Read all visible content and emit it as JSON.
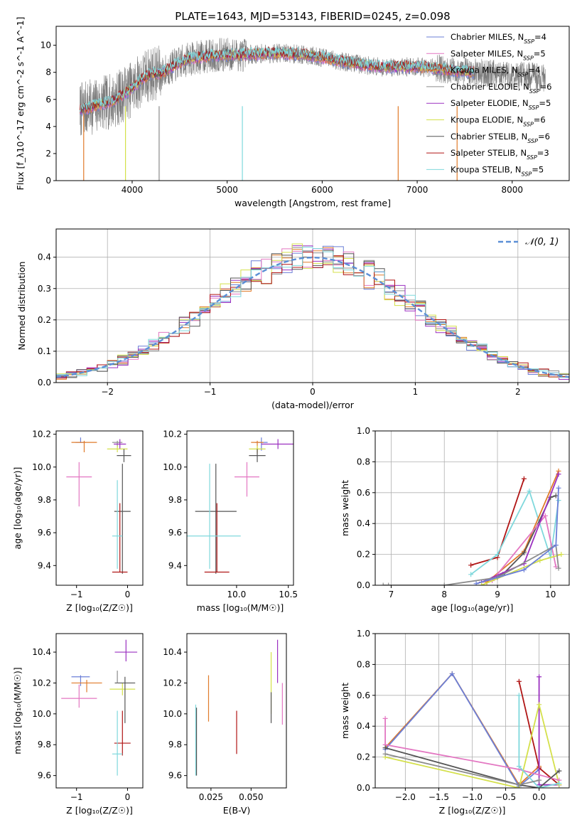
{
  "figure": {
    "title": "PLATE=1643, MJD=53143, FIBERID=0245, z=0.098"
  },
  "colors": {
    "Chabrier MILES": "#6b7fd7",
    "Salpeter MILES": "#e377c2",
    "Kroupa MILES": "#e07b2a",
    "Chabrier ELODIE": "#8c8c8c",
    "Salpeter ELODIE": "#9b30c0",
    "Kroupa ELODIE": "#d4e04a",
    "Chabrier STELIB": "#555555",
    "Salpeter STELIB": "#b01515",
    "Kroupa STELIB": "#7fd8dc",
    "gaussian": "#5b8fd6"
  },
  "chart_data": [
    {
      "id": "spectrum",
      "type": "line",
      "xlabel": "wavelength [Angstrom, rest frame]",
      "ylabel": "Flux [f_λ10^-17 erg cm^-2 s^-1 A^-1]",
      "xlim": [
        3200,
        8600
      ],
      "ylim": [
        0,
        11.4
      ],
      "xticks": [
        4000,
        5000,
        6000,
        7000,
        8000
      ],
      "yticks": [
        0,
        2,
        4,
        6,
        8,
        10
      ],
      "legend_position": "upper right",
      "legend": [
        {
          "label": "Chabrier MILES, N",
          "sub": "SSP",
          "suffix": "=4"
        },
        {
          "label": "Salpeter MILES, N",
          "sub": "SSP",
          "suffix": "=5"
        },
        {
          "label": "Kroupa MILES, N",
          "sub": "SSP",
          "suffix": "=4"
        },
        {
          "label": "Chabrier ELODIE, N",
          "sub": "SSP",
          "suffix": "=6"
        },
        {
          "label": "Salpeter ELODIE, N",
          "sub": "SSP",
          "suffix": "=5"
        },
        {
          "label": "Kroupa ELODIE, N",
          "sub": "SSP",
          "suffix": "=6"
        },
        {
          "label": "Chabrier STELIB, N",
          "sub": "SSP",
          "suffix": "=6"
        },
        {
          "label": "Salpeter STELIB, N",
          "sub": "SSP",
          "suffix": "=3"
        },
        {
          "label": "Kroupa STELIB, N",
          "sub": "SSP",
          "suffix": "=5"
        }
      ],
      "continuum": {
        "x": [
          3450,
          3600,
          3700,
          3800,
          3900,
          4000,
          4100,
          4200,
          4300,
          4400,
          4500,
          4600,
          4800,
          5000,
          5200,
          5400,
          5600,
          5800,
          6000,
          6200,
          6400,
          6600,
          6800,
          7000,
          7200,
          7400,
          7600,
          7800,
          8000,
          8200,
          8350
        ],
        "y": [
          5.2,
          5.5,
          5.7,
          5.9,
          6.3,
          6.8,
          7.5,
          7.9,
          7.9,
          8.3,
          8.7,
          9.0,
          9.2,
          9.3,
          9.3,
          9.4,
          9.4,
          9.3,
          9.1,
          8.8,
          8.6,
          8.4,
          8.4,
          8.4,
          8.3,
          8.1,
          8.0,
          7.9,
          7.8,
          7.7,
          7.6
        ]
      },
      "data_noise_amplitude_note": "observed data shown as noisy grey trace around the model continuum"
    },
    {
      "id": "residuals",
      "type": "bar",
      "xlabel": "(data-model)/error",
      "ylabel": "Normed distribution",
      "xlim": [
        -2.5,
        2.5
      ],
      "ylim": [
        0,
        0.49
      ],
      "xticks": [
        -2,
        -1,
        0,
        1,
        2
      ],
      "yticks": [
        0.0,
        0.1,
        0.2,
        0.3,
        0.4
      ],
      "grid": true,
      "legend_position": "upper right",
      "legend_label": "𝒩(0, 1)",
      "bin_width": 0.1
    },
    {
      "id": "age_vs_Z",
      "type": "scatter",
      "xlabel": "Z [log₁₀(Z/Z☉)]",
      "ylabel": "age  [log₁₀(age/yr)]",
      "xlim": [
        -1.4,
        0.3
      ],
      "ylim": [
        9.28,
        10.22
      ],
      "xticks": [
        -1,
        0
      ],
      "yticks": [
        9.4,
        9.6,
        9.8,
        10.0,
        10.2
      ],
      "points": [
        {
          "model": "Chabrier MILES",
          "x": -0.92,
          "xerr": 0.1,
          "y": 10.15,
          "yerr": [
            0.0,
            0.03
          ]
        },
        {
          "model": "Salpeter MILES",
          "x": -0.95,
          "xerr": 0.25,
          "y": 9.94,
          "yerr": [
            0.18,
            0.09
          ]
        },
        {
          "model": "Kroupa MILES",
          "x": -0.85,
          "xerr": 0.25,
          "y": 10.15,
          "yerr": [
            0.06,
            0.01
          ]
        },
        {
          "model": "Chabrier ELODIE",
          "x": -0.2,
          "xerr": 0.1,
          "y": 10.15,
          "yerr": [
            0.03,
            0.01
          ]
        },
        {
          "model": "Salpeter ELODIE",
          "x": -0.15,
          "xerr": 0.12,
          "y": 10.14,
          "yerr": [
            0.03,
            0.03
          ]
        },
        {
          "model": "Kroupa ELODIE",
          "x": -0.2,
          "xerr": 0.2,
          "y": 10.11,
          "yerr": [
            0.02,
            0.02
          ]
        },
        {
          "model": "Chabrier STELIB",
          "x": -0.1,
          "xerr": 0.16,
          "y": 9.73,
          "yerr": [
            0.38,
            0.29
          ]
        },
        {
          "model": "Salpeter STELIB",
          "x": -0.15,
          "xerr": 0.15,
          "y": 9.36,
          "yerr": [
            0.0,
            0.42
          ]
        },
        {
          "model": "Kroupa STELIB",
          "x": -0.2,
          "xerr": 0.1,
          "y": 9.58,
          "yerr": [
            0.2,
            0.34
          ]
        },
        {
          "model": "Chabrier STELIB",
          "x": -0.07,
          "xerr": 0.14,
          "y": 10.07,
          "yerr": [
            0.04,
            0.04
          ]
        }
      ]
    },
    {
      "id": "age_vs_mass",
      "type": "scatter",
      "xlabel": "mass [log₁₀(M/M☉)]",
      "ylabel": "",
      "xlim": [
        9.52,
        10.55
      ],
      "ylim": [
        9.28,
        10.22
      ],
      "xticks": [
        10.0,
        10.5
      ],
      "yticks": [
        9.4,
        9.6,
        9.8,
        10.0,
        10.2
      ],
      "points": [
        {
          "model": "Chabrier MILES",
          "x": 10.24,
          "xerr": 0.06,
          "y": 10.15,
          "yerr": [
            0.05,
            0.03
          ]
        },
        {
          "model": "Salpeter MILES",
          "x": 10.1,
          "xerr": 0.12,
          "y": 9.94,
          "yerr": [
            0.12,
            0.09
          ]
        },
        {
          "model": "Kroupa MILES",
          "x": 10.2,
          "xerr": 0.06,
          "y": 10.15,
          "yerr": [
            0.07,
            0.01
          ]
        },
        {
          "model": "Salpeter ELODIE",
          "x": 10.4,
          "xerr": 0.16,
          "y": 10.14,
          "yerr": [
            0.03,
            0.03
          ]
        },
        {
          "model": "Kroupa ELODIE",
          "x": 10.2,
          "xerr": 0.08,
          "y": 10.11,
          "yerr": [
            0.02,
            0.02
          ]
        },
        {
          "model": "Chabrier STELIB",
          "x": 9.8,
          "xerr": 0.2,
          "y": 9.73,
          "yerr": [
            0.38,
            0.29
          ]
        },
        {
          "model": "Salpeter STELIB",
          "x": 9.81,
          "xerr": 0.12,
          "y": 9.36,
          "yerr": [
            0.0,
            0.42
          ]
        },
        {
          "model": "Kroupa STELIB",
          "x": 9.74,
          "xerr": 0.3,
          "y": 9.58,
          "yerr": [
            0.2,
            0.44
          ]
        },
        {
          "model": "Chabrier STELIB",
          "x": 10.2,
          "xerr": 0.08,
          "y": 10.07,
          "yerr": [
            0.04,
            0.04
          ]
        }
      ]
    },
    {
      "id": "weight_vs_age",
      "type": "line",
      "xlabel": "age  [log₁₀(age/yr)]",
      "ylabel": "mass weight",
      "xlim": [
        6.7,
        10.35
      ],
      "ylim": [
        0,
        1.0
      ],
      "xticks": [
        7,
        8,
        9,
        10
      ],
      "yticks": [
        0.0,
        0.2,
        0.4,
        0.6,
        0.8,
        1.0
      ],
      "grid": true,
      "series": [
        {
          "model": "Salpeter STELIB",
          "x": [
            8.5,
            9.0,
            9.5
          ],
          "y": [
            0.13,
            0.18,
            0.69
          ]
        },
        {
          "model": "Kroupa STELIB",
          "x": [
            8.5,
            9.0,
            9.6,
            10.0,
            10.15
          ],
          "y": [
            0.07,
            0.2,
            0.61,
            0.18,
            0.55
          ]
        },
        {
          "model": "Kroupa MILES",
          "x": [
            8.8,
            9.5,
            10.15
          ],
          "y": [
            0.02,
            0.22,
            0.74
          ]
        },
        {
          "model": "Chabrier STELIB",
          "x": [
            8.9,
            9.1,
            9.5,
            10.0,
            10.1
          ],
          "y": [
            0.04,
            0.07,
            0.21,
            0.57,
            0.58
          ]
        },
        {
          "model": "Salpeter MILES",
          "x": [
            8.9,
            9.9,
            10.1
          ],
          "y": [
            0.03,
            0.45,
            0.12
          ]
        },
        {
          "model": "Salpeter ELODIE",
          "x": [
            8.7,
            9.5,
            10.15
          ],
          "y": [
            0.02,
            0.14,
            0.72
          ]
        },
        {
          "model": "Kroupa ELODIE",
          "x": [
            8.7,
            9.8,
            10.2
          ],
          "y": [
            0.0,
            0.16,
            0.2
          ]
        },
        {
          "model": "Chabrier ELODIE",
          "x": [
            6.85,
            6.95,
            8.0,
            9.0,
            10.1,
            10.15
          ],
          "y": [
            0.0,
            0.0,
            0.0,
            0.05,
            0.26,
            0.11
          ]
        },
        {
          "model": "Chabrier MILES",
          "x": [
            8.6,
            9.5,
            10.1,
            10.15
          ],
          "y": [
            0.01,
            0.1,
            0.26,
            0.63
          ]
        }
      ]
    },
    {
      "id": "mass_vs_Z",
      "type": "scatter",
      "xlabel": "Z [log₁₀(Z/Z☉)]",
      "ylabel": "mass [log₁₀(M/M☉)]",
      "xlim": [
        -1.4,
        0.3
      ],
      "ylim": [
        9.52,
        10.52
      ],
      "xticks": [
        -1,
        0
      ],
      "yticks": [
        9.6,
        9.8,
        10.0,
        10.2,
        10.4
      ],
      "points": [
        {
          "model": "Chabrier MILES",
          "x": -0.92,
          "xerr": 0.18,
          "y": 10.24,
          "yerr": [
            0.06,
            0.01
          ]
        },
        {
          "model": "Salpeter MILES",
          "x": -0.95,
          "xerr": 0.35,
          "y": 10.1,
          "yerr": [
            0.06,
            0.09
          ]
        },
        {
          "model": "Kroupa MILES",
          "x": -0.8,
          "xerr": 0.3,
          "y": 10.2,
          "yerr": [
            0.06,
            0.02
          ]
        },
        {
          "model": "Salpeter ELODIE",
          "x": -0.03,
          "xerr": 0.22,
          "y": 10.4,
          "yerr": [
            0.06,
            0.08
          ]
        },
        {
          "model": "Kroupa ELODIE",
          "x": -0.1,
          "xerr": 0.25,
          "y": 10.16,
          "yerr": [
            0.04,
            0.04
          ]
        },
        {
          "model": "Chabrier STELIB",
          "x": -0.05,
          "xerr": 0.2,
          "y": 10.2,
          "yerr": [
            0.26,
            0.04
          ]
        },
        {
          "model": "Salpeter STELIB",
          "x": -0.1,
          "xerr": 0.16,
          "y": 9.81,
          "yerr": [
            0.08,
            0.21
          ]
        },
        {
          "model": "Kroupa STELIB",
          "x": -0.2,
          "xerr": 0.1,
          "y": 9.74,
          "yerr": [
            0.14,
            0.28
          ]
        },
        {
          "model": "Chabrier ELODIE",
          "x": -0.2,
          "xerr": 0.0,
          "y": 10.2,
          "yerr": [
            0.0,
            0.08
          ]
        }
      ]
    },
    {
      "id": "mass_vs_ebv",
      "type": "scatter",
      "xlabel": "E(B-V)",
      "ylabel": "",
      "xlim": [
        0.01,
        0.072
      ],
      "ylim": [
        9.52,
        10.52
      ],
      "xticks": [
        0.025,
        0.05
      ],
      "yticks": [
        9.6,
        9.8,
        10.0,
        10.2,
        10.4
      ],
      "xtick_labels": [
        "0.025",
        "0.050"
      ],
      "points": [
        {
          "model": "Kroupa STELIB",
          "x": 0.0155,
          "y": 9.74,
          "yerr": [
            0.14,
            0.32
          ]
        },
        {
          "model": "Chabrier STELIB",
          "x": 0.016,
          "y": 9.8,
          "yerr": [
            0.2,
            0.24
          ]
        },
        {
          "model": "Kroupa MILES",
          "x": 0.0235,
          "y": 10.1,
          "yerr": [
            0.15,
            0.15
          ]
        },
        {
          "model": "Salpeter STELIB",
          "x": 0.041,
          "y": 9.88,
          "yerr": [
            0.14,
            0.14
          ]
        },
        {
          "model": "Kroupa ELODIE",
          "x": 0.0625,
          "y": 10.2,
          "yerr": [
            0.2,
            0.2
          ]
        },
        {
          "model": "Chabrier STELIB",
          "x": 0.0625,
          "y": 10.04,
          "yerr": [
            0.1,
            0.1
          ]
        },
        {
          "model": "Salpeter ELODIE",
          "x": 0.0665,
          "y": 10.3,
          "yerr": [
            0.1,
            0.18
          ]
        },
        {
          "model": "Salpeter MILES",
          "x": 0.0695,
          "y": 10.08,
          "yerr": [
            0.15,
            0.12
          ]
        }
      ]
    },
    {
      "id": "weight_vs_Z",
      "type": "line",
      "xlabel": "Z [log₁₀(Z/Z☉)]",
      "ylabel": "mass weight",
      "xlim": [
        -2.45,
        0.45
      ],
      "ylim": [
        0,
        1.0
      ],
      "xticks": [
        -2.0,
        -1.5,
        -1.0,
        -0.5,
        0.0
      ],
      "yticks": [
        0.0,
        0.2,
        0.4,
        0.6,
        0.8,
        1.0
      ],
      "grid": true,
      "series": [
        {
          "model": "Kroupa MILES",
          "x": [
            -2.3,
            -1.3,
            -0.3,
            0.0
          ],
          "y": [
            0.26,
            0.74,
            0.02,
            0.14
          ]
        },
        {
          "model": "Chabrier MILES",
          "x": [
            -2.3,
            -1.3,
            -0.3,
            0.0
          ],
          "y": [
            0.25,
            0.74,
            0.01,
            0.12
          ]
        },
        {
          "model": "Salpeter STELIB",
          "x": [
            -0.3,
            0.0,
            0.3
          ],
          "y": [
            0.69,
            0.13,
            0.02
          ]
        },
        {
          "model": "Salpeter ELODIE",
          "x": [
            0.0,
            0.0,
            0.3
          ],
          "y": [
            0.72,
            0.02,
            0.02
          ]
        },
        {
          "model": "Kroupa ELODIE",
          "x": [
            -2.3,
            -0.3,
            0.0,
            0.3
          ],
          "y": [
            0.2,
            0.0,
            0.54,
            0.02
          ]
        },
        {
          "model": "Salpeter MILES",
          "x": [
            -2.3,
            -2.3,
            -0.3,
            0.3
          ],
          "y": [
            0.45,
            0.28,
            0.12,
            0.05
          ]
        },
        {
          "model": "Chabrier STELIB",
          "x": [
            -2.3,
            -0.3,
            0.0,
            0.3
          ],
          "y": [
            0.26,
            0.02,
            0.0,
            0.11
          ]
        },
        {
          "model": "Kroupa STELIB",
          "x": [
            -0.3,
            -0.3,
            0.0,
            0.3
          ],
          "y": [
            0.6,
            0.14,
            0.0,
            0.03
          ]
        },
        {
          "model": "Chabrier ELODIE",
          "x": [
            -2.3,
            -0.3,
            0.0
          ],
          "y": [
            0.22,
            0.02,
            0.05
          ]
        }
      ]
    }
  ]
}
